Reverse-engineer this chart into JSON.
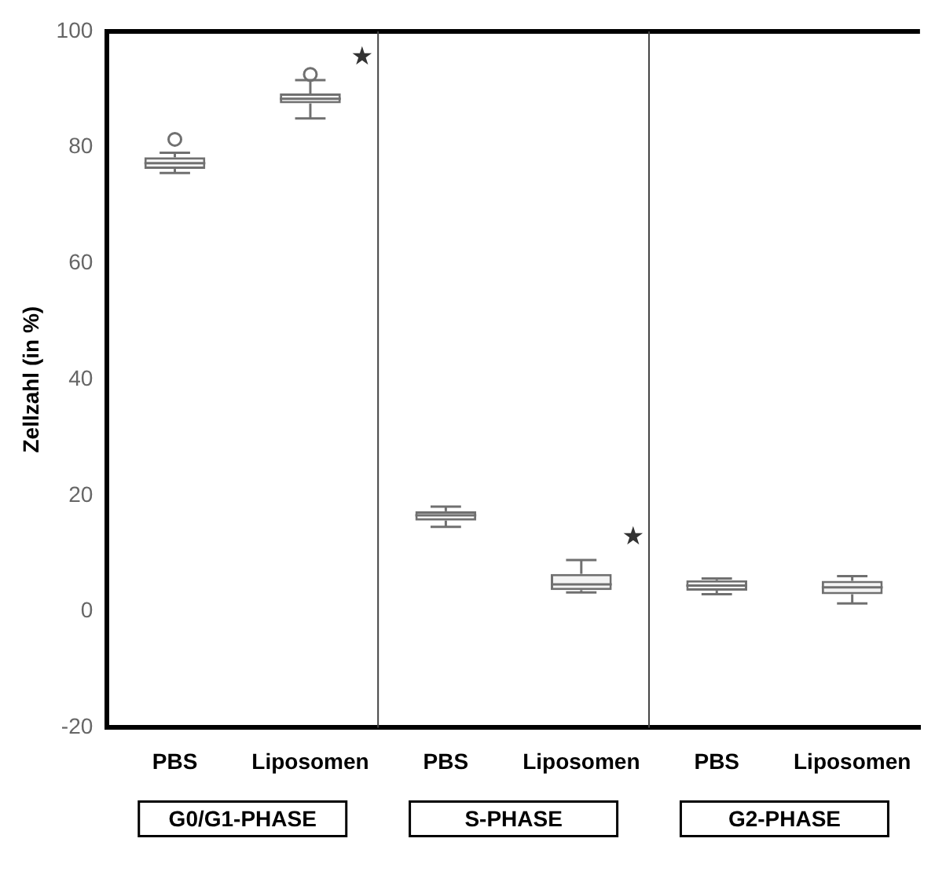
{
  "chart_data": {
    "type": "box",
    "ylabel": "Zellzahl (in %)",
    "categories": [
      "PBS",
      "Liposomen",
      "PBS",
      "Liposomen",
      "PBS",
      "Liposomen"
    ],
    "color": "#707070",
    "boxes": [
      {
        "low": 75.6,
        "q1": 76.3,
        "median": 77.3,
        "q3": 78.3,
        "high": 79.1,
        "outliers": [
          81.4
        ]
      },
      {
        "low": 85.0,
        "q1": 87.6,
        "median": 88.4,
        "q3": 89.3,
        "high": 91.6,
        "outliers": [
          92.6
        ]
      },
      {
        "low": 14.6,
        "q1": 15.7,
        "median": 16.6,
        "q3": 17.3,
        "high": 18.1
      },
      {
        "low": 3.3,
        "q1": 3.7,
        "median": 4.7,
        "q3": 6.5,
        "high": 8.9
      },
      {
        "low": 3.0,
        "q1": 3.6,
        "median": 4.5,
        "q3": 5.4,
        "high": 5.7
      },
      {
        "low": 1.4,
        "q1": 3.0,
        "median": 4.2,
        "q3": 5.3,
        "high": 6.1
      }
    ],
    "ylim": [
      -20,
      100
    ],
    "yticks": [
      -20,
      0,
      20,
      40,
      60,
      80,
      100
    ],
    "grid": false,
    "legend": false,
    "annotations": [
      "★",
      "★",
      "G0/G1-PHASE",
      "S-PHASE",
      "G2-PHASE"
    ]
  }
}
